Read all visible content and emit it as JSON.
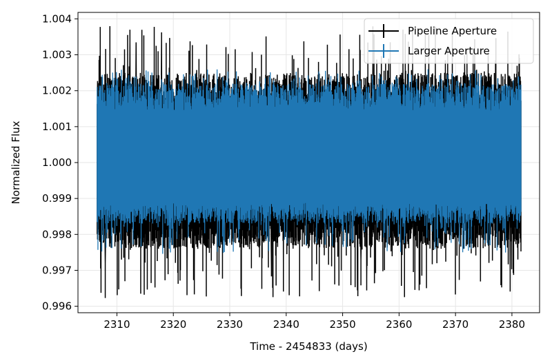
{
  "chart_data": {
    "type": "line",
    "title": "",
    "xlabel": "Time - 2454833 (days)",
    "ylabel": "Normalized Flux",
    "xlim": [
      2303.1,
      2384.9
    ],
    "ylim": [
      0.99582,
      1.00418
    ],
    "xticks": [
      2310,
      2320,
      2330,
      2340,
      2350,
      2360,
      2370,
      2380
    ],
    "xtick_labels": [
      "2310",
      "2320",
      "2330",
      "2340",
      "2350",
      "2360",
      "2370",
      "2380"
    ],
    "yticks": [
      0.996,
      0.997,
      0.998,
      0.999,
      1.0,
      1.001,
      1.002,
      1.003,
      1.004
    ],
    "ytick_labels": [
      "0.996",
      "0.997",
      "0.998",
      "0.999",
      "1.000",
      "1.001",
      "1.002",
      "1.003",
      "1.004"
    ],
    "grid": true,
    "legend_position": "top-right",
    "x_range": [
      2306.5,
      2381.6
    ],
    "series": [
      {
        "name": "Pipeline Aperture",
        "color": "#000000",
        "style": "errorbar",
        "mean": 1.0,
        "typical_min": 0.9976,
        "typical_max": 1.0025,
        "extreme_min": 0.9962,
        "extreme_max": 1.0038
      },
      {
        "name": "Larger Aperture",
        "color": "#1f77b4",
        "style": "errorbar",
        "mean": 1.0,
        "typical_min": 0.9983,
        "typical_max": 1.0022,
        "extreme_min": 0.9974,
        "extreme_max": 1.0026
      }
    ]
  }
}
